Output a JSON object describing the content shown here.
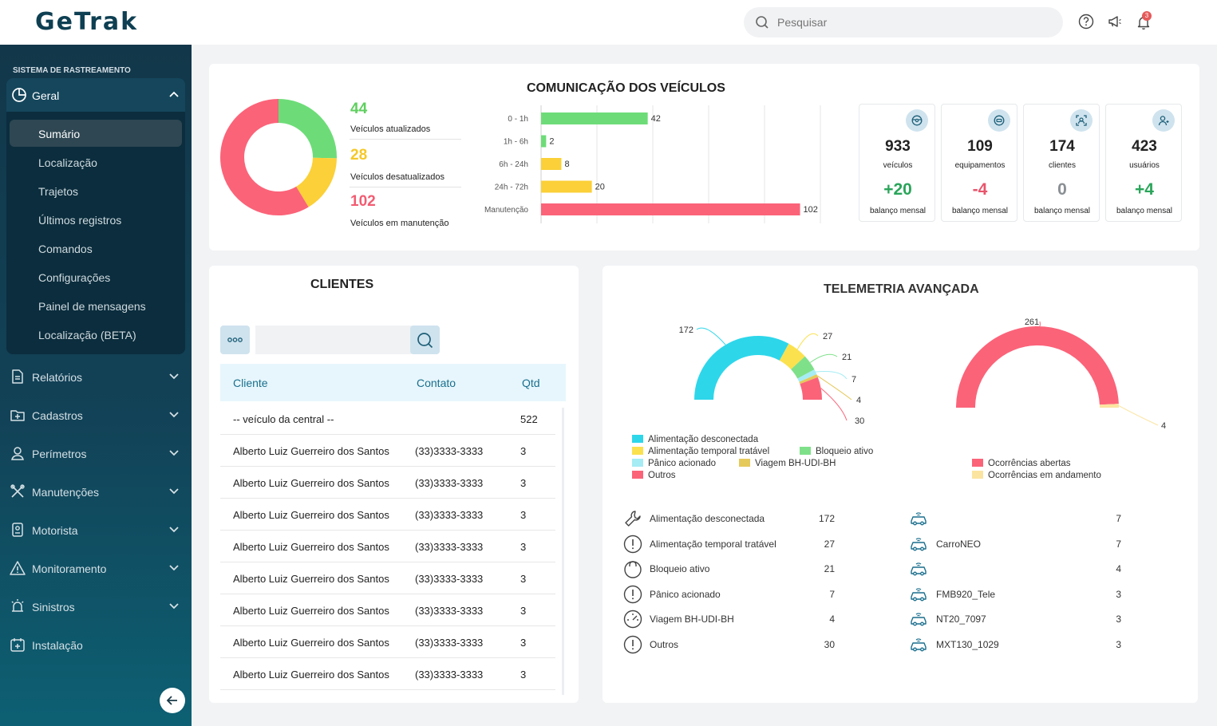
{
  "header": {
    "logo": "GeTrak",
    "search_placeholder": "Pesquisar",
    "notification_count": "3"
  },
  "sidebar": {
    "section_title": "SISTEMA DE RASTREAMENTO",
    "geral": {
      "label": "Geral",
      "items": [
        "Sumário",
        "Localização",
        "Trajetos",
        "Últimos registros",
        "Comandos",
        "Configurações",
        "Painel de mensagens",
        "Localização (BETA)"
      ]
    },
    "menus": [
      "Relatórios",
      "Cadastros",
      "Perímetros",
      "Manutenções",
      "Motorista",
      "Monitoramento",
      "Sinistros",
      "Instalação"
    ]
  },
  "comunicacao": {
    "title": "COMUNICAÇÃO DOS VEÍCULOS",
    "stats": [
      {
        "value": "44",
        "label": "Veículos atualizados",
        "color": "#5fcf5f"
      },
      {
        "value": "28",
        "label": "Veículos desatualizados",
        "color": "#f5c827"
      },
      {
        "value": "102",
        "label": "Veículos em manutenção",
        "color": "#f25c72"
      }
    ],
    "donut": [
      {
        "value": 44,
        "color": "#6ddc78"
      },
      {
        "value": 28,
        "color": "#fbd038"
      },
      {
        "value": 102,
        "color": "#fb6379"
      }
    ]
  },
  "chart_data": [
    {
      "type": "bar",
      "orientation": "horizontal",
      "title": "COMUNICAÇÃO DOS VEÍCULOS",
      "categories": [
        "0 - 1h",
        "1h - 6h",
        "6h - 24h",
        "24h - 72h",
        "Manutenção"
      ],
      "values": [
        42,
        2,
        8,
        20,
        102
      ],
      "colors": [
        "#6ddc78",
        "#6ddc78",
        "#fbd038",
        "#fbd038",
        "#fb6379"
      ],
      "xlim": [
        0,
        110
      ],
      "grid": true
    },
    {
      "type": "pie",
      "style": "semi-donut",
      "labels": [
        "Alimentação desconectada",
        "Alimentação temporal tratável",
        "Bloqueio ativo",
        "Pânico acionado",
        "Viagem BH-UDI-BH",
        "Outros"
      ],
      "values": [
        172,
        27,
        21,
        7,
        4,
        30
      ],
      "colors": [
        "#2ed6ea",
        "#fbe14e",
        "#7fe08a",
        "#a5ecf4",
        "#e5c95b",
        "#fb6379"
      ],
      "legend": "bottom-left"
    },
    {
      "type": "pie",
      "style": "semi-donut",
      "labels": [
        "Ocorrências abertas",
        "Ocorrências em andamento"
      ],
      "values": [
        261,
        4
      ],
      "colors": [
        "#fb6379",
        "#fbe4a0"
      ],
      "legend": "bottom"
    }
  ],
  "kpis": [
    {
      "value": "933",
      "label": "veículos",
      "delta": "+20",
      "delta_color": "#2aa55a",
      "balance": "balanço mensal",
      "icon": "steering-wheel-icon"
    },
    {
      "value": "109",
      "label": "equipamentos",
      "delta": "-4",
      "delta_color": "#e8556b",
      "balance": "balanço mensal",
      "icon": "device-icon"
    },
    {
      "value": "174",
      "label": "clientes",
      "delta": "0",
      "delta_color": "#8a8f94",
      "balance": "balanço mensal",
      "icon": "client-scan-icon"
    },
    {
      "value": "423",
      "label": "usuários",
      "delta": "+4",
      "delta_color": "#2aa55a",
      "balance": "balanço mensal",
      "icon": "users-icon"
    }
  ],
  "clientes": {
    "title": "CLIENTES",
    "columns": [
      "Cliente",
      "Contato",
      "Qtd"
    ],
    "rows": [
      [
        "-- veículo da central --",
        "",
        "522"
      ],
      [
        "Alberto Luiz Guerreiro dos Santos",
        "(33)3333-3333",
        "3"
      ],
      [
        "Alberto Luiz Guerreiro dos Santos",
        "(33)3333-3333",
        "3"
      ],
      [
        "Alberto Luiz Guerreiro dos Santos",
        "(33)3333-3333",
        "3"
      ],
      [
        "Alberto Luiz Guerreiro dos Santos",
        "(33)3333-3333",
        "3"
      ],
      [
        "Alberto Luiz Guerreiro dos Santos",
        "(33)3333-3333",
        "3"
      ],
      [
        "Alberto Luiz Guerreiro dos Santos",
        "(33)3333-3333",
        "3"
      ],
      [
        "Alberto Luiz Guerreiro dos Santos",
        "(33)3333-3333",
        "3"
      ],
      [
        "Alberto Luiz Guerreiro dos Santos",
        "(33)3333-3333",
        "3"
      ]
    ]
  },
  "telemetria": {
    "title": "TELEMETRIA AVANÇADA",
    "left_legend": [
      {
        "label": "Alimentação desconectada",
        "color": "#2ed6ea"
      },
      {
        "label": "Alimentação temporal tratável",
        "color": "#fbe14e"
      },
      {
        "label": "Bloqueio ativo",
        "color": "#7fe08a"
      },
      {
        "label": "Pânico acionado",
        "color": "#a5ecf4"
      },
      {
        "label": "Viagem BH-UDI-BH",
        "color": "#e5c95b"
      },
      {
        "label": "Outros",
        "color": "#fb6379"
      }
    ],
    "right_legend": [
      {
        "label": "Ocorrências abertas",
        "color": "#fb6379"
      },
      {
        "label": "Ocorrências em andamento",
        "color": "#fbe4a0"
      }
    ],
    "left_list": [
      {
        "label": "Alimentação desconectada",
        "value": "172",
        "icon": "wrench-icon"
      },
      {
        "label": "Alimentação temporal tratável",
        "value": "27",
        "icon": "alert-circle-icon"
      },
      {
        "label": "Bloqueio ativo",
        "value": "21",
        "icon": "lock-icon"
      },
      {
        "label": "Pânico acionado",
        "value": "7",
        "icon": "alert-triangle-icon"
      },
      {
        "label": "Viagem BH-UDI-BH",
        "value": "4",
        "icon": "speedometer-icon"
      },
      {
        "label": "Outros",
        "value": "30",
        "icon": "alert-circle-icon"
      }
    ],
    "right_list": [
      {
        "label": "",
        "value": "7"
      },
      {
        "label": "CarroNEO",
        "value": "7"
      },
      {
        "label": "",
        "value": "4"
      },
      {
        "label": "FMB920_Tele",
        "value": "3"
      },
      {
        "label": "NT20_7097",
        "value": "3"
      },
      {
        "label": "MXT130_1029",
        "value": "3"
      }
    ]
  }
}
